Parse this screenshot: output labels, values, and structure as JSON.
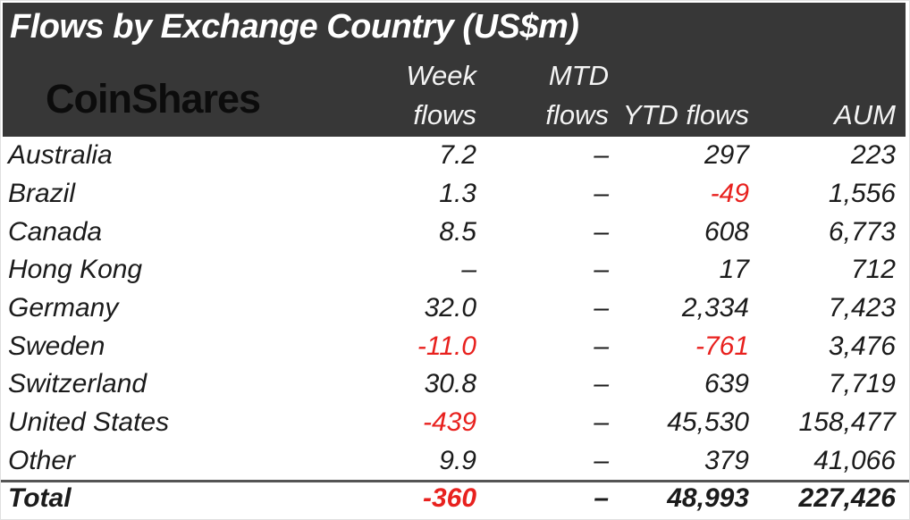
{
  "colors": {
    "header_bg": "#373737",
    "header_text": "#f4f4f4",
    "body_text": "#1b1b1b",
    "negative": "#e8211e",
    "separator": "#555555"
  },
  "header": {
    "title": "Flows by Exchange Country (US$m)",
    "logo_text": "CoinShares",
    "columns": [
      {
        "line1": "Week",
        "line2": "flows"
      },
      {
        "line1": "MTD",
        "line2": "flows"
      },
      {
        "line1": "",
        "line2": "YTD flows"
      },
      {
        "line1": "",
        "line2": "AUM"
      }
    ]
  },
  "table": {
    "rows": [
      {
        "country": "Australia",
        "week": "7.2",
        "mtd": "–",
        "ytd": "297",
        "aum": "223"
      },
      {
        "country": "Brazil",
        "week": "1.3",
        "mtd": "–",
        "ytd": "-49",
        "aum": "1,556"
      },
      {
        "country": "Canada",
        "week": "8.5",
        "mtd": "–",
        "ytd": "608",
        "aum": "6,773"
      },
      {
        "country": "Hong Kong",
        "week": "–",
        "mtd": "–",
        "ytd": "17",
        "aum": "712"
      },
      {
        "country": "Germany",
        "week": "32.0",
        "mtd": "–",
        "ytd": "2,334",
        "aum": "7,423"
      },
      {
        "country": "Sweden",
        "week": "-11.0",
        "mtd": "–",
        "ytd": "-761",
        "aum": "3,476"
      },
      {
        "country": "Switzerland",
        "week": "30.8",
        "mtd": "–",
        "ytd": "639",
        "aum": "7,719"
      },
      {
        "country": "United States",
        "week": "-439",
        "mtd": "–",
        "ytd": "45,530",
        "aum": "158,477"
      },
      {
        "country": "Other",
        "week": "9.9",
        "mtd": "–",
        "ytd": "379",
        "aum": "41,066"
      }
    ],
    "total": {
      "country": "Total",
      "week": "-360",
      "mtd": "–",
      "ytd": "48,993",
      "aum": "227,426"
    }
  },
  "chart_data": {
    "type": "table",
    "title": "Flows by Exchange Country (US$m)",
    "columns": [
      "Country",
      "Week flows",
      "MTD flows",
      "YTD flows",
      "AUM"
    ],
    "rows": [
      [
        "Australia",
        7.2,
        null,
        297,
        223
      ],
      [
        "Brazil",
        1.3,
        null,
        -49,
        1556
      ],
      [
        "Canada",
        8.5,
        null,
        608,
        6773
      ],
      [
        "Hong Kong",
        null,
        null,
        17,
        712
      ],
      [
        "Germany",
        32.0,
        null,
        2334,
        7423
      ],
      [
        "Sweden",
        -11.0,
        null,
        -761,
        3476
      ],
      [
        "Switzerland",
        30.8,
        null,
        639,
        7719
      ],
      [
        "United States",
        -439,
        null,
        45530,
        158477
      ],
      [
        "Other",
        9.9,
        null,
        379,
        41066
      ]
    ],
    "total_row": [
      "Total",
      -360,
      null,
      48993,
      227426
    ],
    "notes": "null cells rendered as en dash; negative values rendered in red"
  }
}
